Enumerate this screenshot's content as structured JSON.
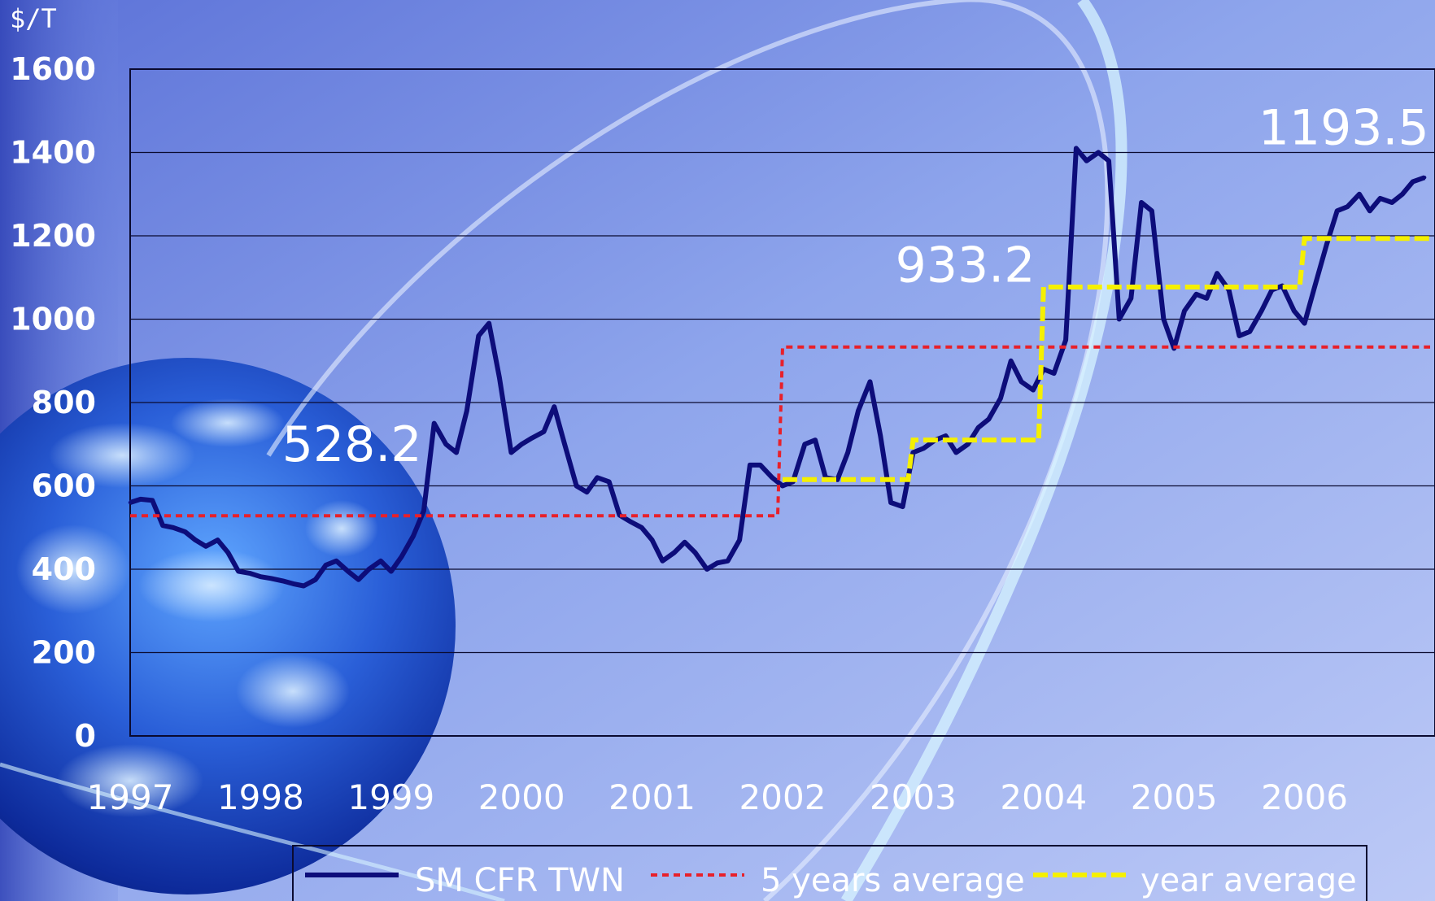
{
  "chart_data": {
    "type": "line",
    "unit_label": "$/T",
    "ylim": [
      0,
      1600
    ],
    "yticks": [
      0,
      200,
      400,
      600,
      800,
      1000,
      1200,
      1400,
      1600
    ],
    "xlim": [
      1997,
      2007
    ],
    "xticks": [
      "1997",
      "1998",
      "1999",
      "2000",
      "2001",
      "2002",
      "2003",
      "2004",
      "2005",
      "2006"
    ],
    "grid": "horizontal",
    "legend_position": "bottom",
    "colors": {
      "sm": "#0d0d7a",
      "five_year": "#e8202a",
      "year_avg": "#f5f000"
    },
    "series": [
      {
        "name": "SM CFR TWN",
        "style": "solid",
        "x": [
          1997.0,
          1997.08,
          1997.17,
          1997.25,
          1997.33,
          1997.42,
          1997.5,
          1997.58,
          1997.67,
          1997.75,
          1997.83,
          1997.92,
          1998.0,
          1998.08,
          1998.17,
          1998.25,
          1998.33,
          1998.42,
          1998.5,
          1998.58,
          1998.67,
          1998.75,
          1998.83,
          1998.92,
          1999.0,
          1999.08,
          1999.17,
          1999.25,
          1999.33,
          1999.42,
          1999.5,
          1999.58,
          1999.67,
          1999.75,
          1999.83,
          1999.92,
          2000.0,
          2000.08,
          2000.17,
          2000.25,
          2000.33,
          2000.42,
          2000.5,
          2000.58,
          2000.67,
          2000.75,
          2000.83,
          2000.92,
          2001.0,
          2001.08,
          2001.17,
          2001.25,
          2001.33,
          2001.42,
          2001.5,
          2001.58,
          2001.67,
          2001.75,
          2001.83,
          2001.92,
          2002.0,
          2002.08,
          2002.17,
          2002.25,
          2002.33,
          2002.42,
          2002.5,
          2002.58,
          2002.67,
          2002.75,
          2002.83,
          2002.92,
          2003.0,
          2003.08,
          2003.17,
          2003.25,
          2003.33,
          2003.42,
          2003.5,
          2003.58,
          2003.67,
          2003.75,
          2003.83,
          2003.92,
          2004.0,
          2004.08,
          2004.17,
          2004.25,
          2004.33,
          2004.42,
          2004.5,
          2004.58,
          2004.67,
          2004.75,
          2004.83,
          2004.92,
          2005.0,
          2005.08,
          2005.17,
          2005.25,
          2005.33,
          2005.42,
          2005.5,
          2005.58,
          2005.67,
          2005.75,
          2005.83,
          2005.92,
          2006.0,
          2006.08,
          2006.17,
          2006.25,
          2006.33,
          2006.42,
          2006.5,
          2006.58,
          2006.67,
          2006.75,
          2006.83,
          2006.92
        ],
        "y": [
          560,
          568,
          565,
          505,
          500,
          490,
          470,
          455,
          470,
          440,
          395,
          390,
          382,
          378,
          372,
          365,
          360,
          375,
          410,
          420,
          395,
          375,
          400,
          420,
          395,
          430,
          480,
          540,
          750,
          700,
          680,
          780,
          960,
          990,
          860,
          680,
          700,
          715,
          730,
          790,
          700,
          600,
          585,
          620,
          610,
          530,
          515,
          500,
          470,
          420,
          440,
          465,
          440,
          400,
          415,
          420,
          470,
          650,
          650,
          620,
          600,
          610,
          700,
          710,
          620,
          615,
          680,
          780,
          850,
          720,
          560,
          550,
          680,
          690,
          710,
          720,
          680,
          700,
          740,
          760,
          810,
          900,
          850,
          830,
          880,
          870,
          950,
          1410,
          1380,
          1400,
          1380,
          1000,
          1050,
          1280,
          1260,
          1000,
          930,
          1020,
          1060,
          1050,
          1110,
          1070,
          960,
          970,
          1020,
          1070,
          1080,
          1020,
          990,
          1080,
          1180,
          1260,
          1270,
          1300,
          1260,
          1290,
          1280,
          1300,
          1330,
          1340
        ]
      },
      {
        "name": "5 years average",
        "style": "dotted",
        "segments": [
          {
            "x_start": 1997,
            "x_end": 2002,
            "value": 528.2
          },
          {
            "x_start": 2002,
            "x_end": 2007,
            "value": 933.2
          }
        ]
      },
      {
        "name": "year average",
        "style": "dashed",
        "segments": [
          {
            "x_start": 2002,
            "x_end": 2003,
            "value": 615
          },
          {
            "x_start": 2003,
            "x_end": 2004,
            "value": 710
          },
          {
            "x_start": 2004,
            "x_end": 2006,
            "value": 1077
          },
          {
            "x_start": 2006,
            "x_end": 2007,
            "value": 1193.5
          }
        ]
      }
    ],
    "annotations": [
      {
        "text": "528.2",
        "x": 1998.7,
        "y": 660
      },
      {
        "text": "933.2",
        "x": 2003.4,
        "y": 1090
      },
      {
        "text": "1193.5",
        "x": 2006.3,
        "y": 1420
      }
    ]
  }
}
